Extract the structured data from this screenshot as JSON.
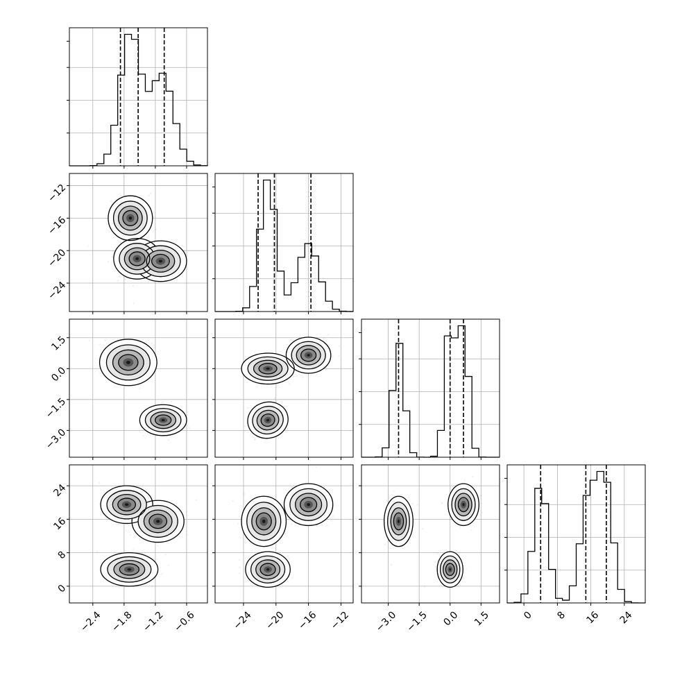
{
  "chart_data": {
    "type": "corner",
    "parameters": [
      {
        "ticks": [
          -2.4,
          -1.8,
          -1.2,
          -0.6
        ],
        "tick_labels": [
          "−2.4",
          "−1.8",
          "−1.2",
          "−0.6"
        ],
        "range": [
          -2.85,
          -0.2
        ],
        "quantiles": [
          -1.87,
          -1.53,
          -1.03
        ],
        "modes": [
          {
            "center": -1.68,
            "sd": 0.2,
            "weight": 0.57
          },
          {
            "center": -1.07,
            "sd": 0.22,
            "weight": 0.43
          }
        ]
      },
      {
        "ticks": [
          -24,
          -20,
          -16,
          -12
        ],
        "tick_labels": [
          "−24",
          "−20",
          "−16",
          "−12"
        ],
        "range": [
          -27.5,
          -10.5
        ],
        "quantiles": [
          -22.2,
          -20.2,
          -15.7
        ],
        "modes": [
          {
            "center": -21.0,
            "sd": 1.0,
            "weight": 0.6
          },
          {
            "center": -16.0,
            "sd": 1.3,
            "weight": 0.4
          }
        ]
      },
      {
        "ticks": [
          -3.0,
          -1.5,
          0.0,
          1.5
        ],
        "tick_labels": [
          "−3.0",
          "−1.5",
          "0.0",
          "1.5"
        ],
        "range": [
          -4.3,
          2.4
        ],
        "quantiles": [
          -2.5,
          0.0,
          0.65
        ],
        "modes": [
          {
            "center": -2.5,
            "sd": 0.28,
            "weight": 0.33
          },
          {
            "center": 0.0,
            "sd": 0.25,
            "weight": 0.34
          },
          {
            "center": 0.65,
            "sd": 0.25,
            "weight": 0.33
          }
        ]
      },
      {
        "ticks": [
          0,
          8,
          16,
          24
        ],
        "tick_labels": [
          "0",
          "8",
          "16",
          "24"
        ],
        "range": [
          -4,
          29
        ],
        "quantiles": [
          4.0,
          14.8,
          19.7
        ],
        "modes": [
          {
            "center": 4.0,
            "sd": 1.7,
            "weight": 0.33
          },
          {
            "center": 15.5,
            "sd": 2.0,
            "weight": 0.34
          },
          {
            "center": 19.5,
            "sd": 1.8,
            "weight": 0.33
          }
        ]
      }
    ],
    "pairs": [
      {
        "row": 1,
        "col": 0,
        "blobs": [
          {
            "cx": -1.68,
            "cy": -16.0,
            "sx": 0.17,
            "sy": 1.1,
            "rho": 0
          },
          {
            "cx": -1.55,
            "cy": -21.0,
            "sx": 0.18,
            "sy": 1.0,
            "rho": 0
          },
          {
            "cx": -1.1,
            "cy": -21.3,
            "sx": 0.2,
            "sy": 1.0,
            "rho": 0
          }
        ]
      },
      {
        "row": 2,
        "col": 0,
        "blobs": [
          {
            "cx": -1.72,
            "cy": 0.3,
            "sx": 0.22,
            "sy": 0.45,
            "rho": 0
          },
          {
            "cx": -1.05,
            "cy": -2.5,
            "sx": 0.18,
            "sy": 0.3,
            "rho": 0
          }
        ]
      },
      {
        "row": 2,
        "col": 1,
        "blobs": [
          {
            "cx": -21.0,
            "cy": 0.0,
            "sx": 1.3,
            "sy": 0.3,
            "rho": 0
          },
          {
            "cx": -16.0,
            "cy": 0.65,
            "sx": 1.1,
            "sy": 0.35,
            "rho": 0
          },
          {
            "cx": -21.0,
            "cy": -2.5,
            "sx": 1.0,
            "sy": 0.35,
            "rho": 0.4
          }
        ]
      },
      {
        "row": 3,
        "col": 0,
        "blobs": [
          {
            "cx": -1.75,
            "cy": 19.5,
            "sx": 0.2,
            "sy": 1.8,
            "rho": 0
          },
          {
            "cx": -1.15,
            "cy": 15.5,
            "sx": 0.2,
            "sy": 2.0,
            "rho": 0
          },
          {
            "cx": -1.7,
            "cy": 4.0,
            "sx": 0.22,
            "sy": 1.6,
            "rho": 0
          }
        ]
      },
      {
        "row": 3,
        "col": 1,
        "blobs": [
          {
            "cx": -21.5,
            "cy": 15.5,
            "sx": 1.1,
            "sy": 2.4,
            "rho": 0
          },
          {
            "cx": -16.0,
            "cy": 19.5,
            "sx": 1.2,
            "sy": 2.0,
            "rho": 0
          },
          {
            "cx": -21.0,
            "cy": 4.0,
            "sx": 1.1,
            "sy": 1.7,
            "rho": 0
          }
        ]
      },
      {
        "row": 3,
        "col": 2,
        "blobs": [
          {
            "cx": -2.5,
            "cy": 15.5,
            "sx": 0.28,
            "sy": 2.4,
            "rho": 0
          },
          {
            "cx": 0.65,
            "cy": 19.5,
            "sx": 0.3,
            "sy": 2.0,
            "rho": 0
          },
          {
            "cx": 0.0,
            "cy": 4.0,
            "sx": 0.25,
            "sy": 1.7,
            "rho": 0
          }
        ]
      }
    ],
    "hist_bins": 20,
    "grid": true
  }
}
